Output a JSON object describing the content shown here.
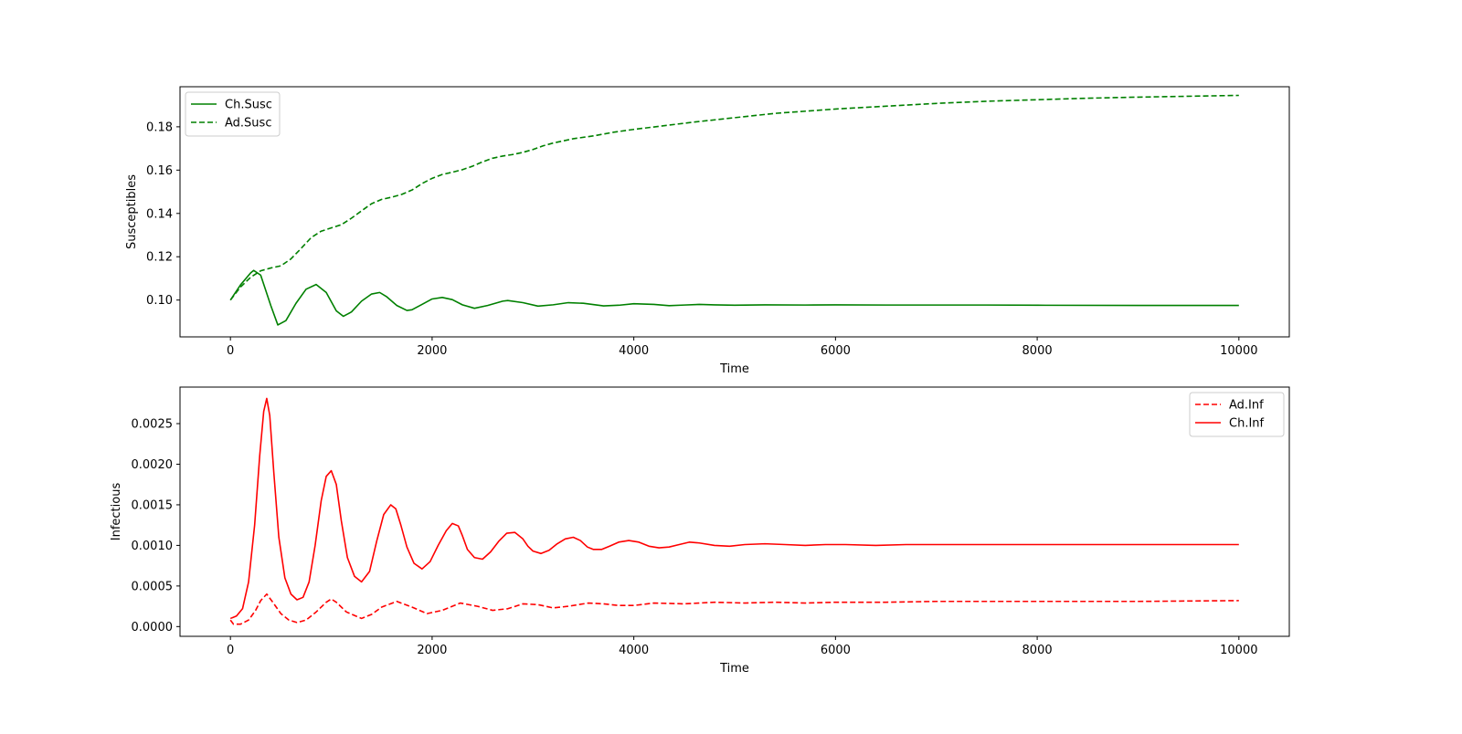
{
  "chart_data": [
    {
      "type": "line",
      "xlabel": "Time",
      "ylabel": "Susceptibles",
      "xlim": [
        -500,
        10500
      ],
      "ylim": [
        0.083,
        0.1985
      ],
      "xticks": [
        0,
        2000,
        4000,
        6000,
        8000,
        10000
      ],
      "xtick_labels": [
        "0",
        "2000",
        "4000",
        "6000",
        "8000",
        "10000"
      ],
      "yticks": [
        0.1,
        0.12,
        0.14,
        0.16,
        0.18
      ],
      "ytick_labels": [
        "0.10",
        "0.12",
        "0.14",
        "0.16",
        "0.18"
      ],
      "legend_position": "upper-left",
      "grid": false,
      "series": [
        {
          "name": "Ch.Susc",
          "color": "#008000",
          "dash": "solid",
          "x": [
            0,
            100,
            200,
            230,
            300,
            400,
            470,
            550,
            650,
            750,
            850,
            950,
            1050,
            1120,
            1200,
            1300,
            1400,
            1480,
            1550,
            1650,
            1750,
            1800,
            1900,
            2000,
            2100,
            2200,
            2300,
            2420,
            2550,
            2700,
            2750,
            2900,
            3050,
            3200,
            3350,
            3500,
            3700,
            3850,
            4000,
            4200,
            4350,
            4500,
            4650,
            4800,
            5000,
            5300,
            5700,
            6000,
            6500,
            7000,
            7500,
            8000,
            9000,
            10000
          ],
          "values": [
            0.1,
            0.107,
            0.1125,
            0.1137,
            0.1115,
            0.0975,
            0.0885,
            0.0905,
            0.0985,
            0.105,
            0.1072,
            0.1035,
            0.095,
            0.0925,
            0.0945,
            0.0995,
            0.1028,
            0.1035,
            0.1015,
            0.0975,
            0.0952,
            0.0955,
            0.098,
            0.1005,
            0.1012,
            0.1002,
            0.0978,
            0.0962,
            0.0975,
            0.0995,
            0.0998,
            0.0988,
            0.0972,
            0.0978,
            0.0988,
            0.0985,
            0.0973,
            0.0976,
            0.0983,
            0.098,
            0.0974,
            0.0977,
            0.098,
            0.0978,
            0.0976,
            0.0978,
            0.0977,
            0.0978,
            0.0977,
            0.0977,
            0.0977,
            0.0976,
            0.0975,
            0.0975
          ]
        },
        {
          "name": "Ad.Susc",
          "color": "#008000",
          "dash": "dashed",
          "x": [
            0,
            100,
            200,
            300,
            400,
            500,
            600,
            700,
            800,
            900,
            1000,
            1100,
            1200,
            1300,
            1400,
            1500,
            1600,
            1700,
            1800,
            1900,
            2000,
            2100,
            2200,
            2300,
            2400,
            2500,
            2600,
            2700,
            2800,
            2900,
            3000,
            3100,
            3200,
            3300,
            3400,
            3600,
            3800,
            4000,
            4300,
            4600,
            5000,
            5400,
            6000,
            6500,
            7000,
            7500,
            8000,
            8500,
            9000,
            9500,
            10000
          ],
          "values": [
            0.1,
            0.106,
            0.1105,
            0.1135,
            0.1148,
            0.1158,
            0.119,
            0.1238,
            0.1288,
            0.1318,
            0.1333,
            0.1348,
            0.1378,
            0.1412,
            0.1445,
            0.1465,
            0.1475,
            0.1488,
            0.1508,
            0.1538,
            0.1562,
            0.158,
            0.159,
            0.1602,
            0.1618,
            0.1638,
            0.1655,
            0.1665,
            0.1672,
            0.1682,
            0.1695,
            0.1712,
            0.1725,
            0.1735,
            0.1745,
            0.1758,
            0.1775,
            0.1788,
            0.1805,
            0.1822,
            0.1842,
            0.1862,
            0.1882,
            0.1895,
            0.1908,
            0.1918,
            0.1925,
            0.1932,
            0.1937,
            0.1941,
            0.1945
          ]
        }
      ]
    },
    {
      "type": "line",
      "xlabel": "Time",
      "ylabel": "Infectious",
      "xlim": [
        -500,
        10500
      ],
      "ylim": [
        -0.00012,
        0.00295
      ],
      "xticks": [
        0,
        2000,
        4000,
        6000,
        8000,
        10000
      ],
      "xtick_labels": [
        "0",
        "2000",
        "4000",
        "6000",
        "8000",
        "10000"
      ],
      "yticks": [
        0.0,
        0.0005,
        0.001,
        0.0015,
        0.002,
        0.0025
      ],
      "ytick_labels": [
        "0.0000",
        "0.0005",
        "0.0010",
        "0.0015",
        "0.0020",
        "0.0025"
      ],
      "legend_position": "upper-right",
      "grid": false,
      "series": [
        {
          "name": "Ad.Inf",
          "color": "#ff0000",
          "dash": "dashed",
          "x": [
            0,
            30,
            100,
            180,
            250,
            300,
            360,
            420,
            500,
            580,
            660,
            750,
            850,
            950,
            1000,
            1050,
            1150,
            1300,
            1400,
            1500,
            1650,
            1800,
            1950,
            2100,
            2280,
            2450,
            2600,
            2750,
            2900,
            3050,
            3200,
            3350,
            3550,
            3700,
            3850,
            4000,
            4200,
            4500,
            4800,
            5100,
            5400,
            5700,
            6000,
            6500,
            7000,
            8000,
            9000,
            10000
          ],
          "values": [
            8e-05,
            3e-05,
            3e-05,
            8e-05,
            0.0002,
            0.00032,
            0.0004,
            0.0003,
            0.00016,
            8e-05,
            5e-05,
            8e-05,
            0.00018,
            0.0003,
            0.00034,
            0.0003,
            0.00018,
            0.0001,
            0.00015,
            0.00024,
            0.00031,
            0.00024,
            0.00016,
            0.0002,
            0.00029,
            0.00025,
            0.0002,
            0.00022,
            0.00028,
            0.00027,
            0.00023,
            0.00025,
            0.00029,
            0.00028,
            0.00026,
            0.00026,
            0.00029,
            0.00028,
            0.0003,
            0.00029,
            0.0003,
            0.00029,
            0.0003,
            0.0003,
            0.00031,
            0.00031,
            0.00031,
            0.00032
          ]
        },
        {
          "name": "Ch.Inf",
          "color": "#ff0000",
          "dash": "solid",
          "x": [
            0,
            60,
            120,
            180,
            240,
            290,
            330,
            360,
            390,
            430,
            480,
            540,
            600,
            660,
            720,
            780,
            840,
            900,
            950,
            1000,
            1050,
            1100,
            1160,
            1230,
            1300,
            1380,
            1450,
            1520,
            1590,
            1640,
            1690,
            1750,
            1820,
            1900,
            1980,
            2060,
            2140,
            2200,
            2260,
            2300,
            2350,
            2420,
            2500,
            2580,
            2660,
            2740,
            2820,
            2900,
            2950,
            3000,
            3080,
            3160,
            3240,
            3320,
            3400,
            3470,
            3540,
            3600,
            3680,
            3760,
            3850,
            3950,
            4050,
            4150,
            4250,
            4350,
            4450,
            4550,
            4650,
            4800,
            4950,
            5100,
            5300,
            5500,
            5700,
            5900,
            6100,
            6400,
            6700,
            7000,
            7500,
            8000,
            9000,
            10000
          ],
          "values": [
            0.0001,
            0.00013,
            0.00022,
            0.00055,
            0.00125,
            0.0021,
            0.00265,
            0.00281,
            0.0026,
            0.0019,
            0.0011,
            0.0006,
            0.0004,
            0.00033,
            0.00036,
            0.00055,
            0.001,
            0.00155,
            0.00185,
            0.00192,
            0.00175,
            0.0013,
            0.00085,
            0.00062,
            0.00055,
            0.00068,
            0.00105,
            0.00138,
            0.0015,
            0.00145,
            0.00125,
            0.00098,
            0.00078,
            0.00071,
            0.0008,
            0.001,
            0.00118,
            0.00127,
            0.00124,
            0.00112,
            0.00095,
            0.00085,
            0.00083,
            0.00092,
            0.00105,
            0.00115,
            0.00116,
            0.00108,
            0.00099,
            0.00093,
            0.0009,
            0.00094,
            0.00102,
            0.00108,
            0.0011,
            0.00106,
            0.00098,
            0.00095,
            0.00095,
            0.00099,
            0.00104,
            0.00106,
            0.00104,
            0.00099,
            0.00097,
            0.00098,
            0.00101,
            0.00104,
            0.00103,
            0.001,
            0.00099,
            0.00101,
            0.00102,
            0.00101,
            0.001,
            0.00101,
            0.00101,
            0.001,
            0.00101,
            0.00101,
            0.00101,
            0.00101,
            0.00101,
            0.00101
          ]
        }
      ]
    }
  ]
}
